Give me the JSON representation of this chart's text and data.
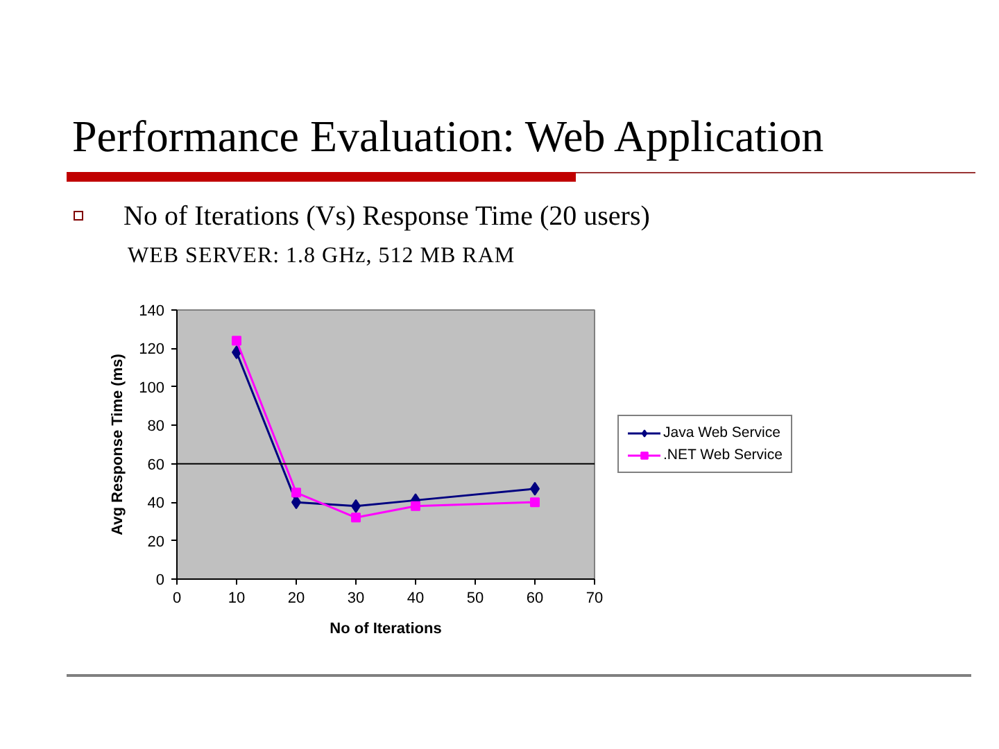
{
  "chart_data": {
    "type": "line",
    "title": "Performance Evaluation: Web Application",
    "subtitle": "No of Iterations (Vs) Response Time (20 users)",
    "annotations": [
      "WEB SERVER: 1.8 GHz, 512 MB RAM"
    ],
    "xlabel": "No of Iterations",
    "ylabel": "Avg Response Time (ms)",
    "x": [
      10,
      20,
      30,
      40,
      60
    ],
    "series": [
      {
        "name": "Java Web Service",
        "color": "#000080",
        "marker": "diamond",
        "values": [
          118,
          40,
          38,
          41,
          47
        ]
      },
      {
        "name": ".NET Web Service",
        "color": "#ff00ff",
        "marker": "square",
        "values": [
          124,
          45,
          32,
          38,
          40
        ]
      }
    ],
    "xlim": [
      0,
      70
    ],
    "xticks": [
      0,
      10,
      20,
      30,
      40,
      50,
      60,
      70
    ],
    "ylim": [
      0,
      140
    ],
    "yticks": [
      0,
      20,
      40,
      60,
      80,
      100,
      120,
      140
    ],
    "grid": false,
    "legend": "right",
    "line_style": "solid",
    "ref_lines": [
      {
        "axis": "y",
        "value": 60,
        "color": "#000000"
      }
    ]
  }
}
